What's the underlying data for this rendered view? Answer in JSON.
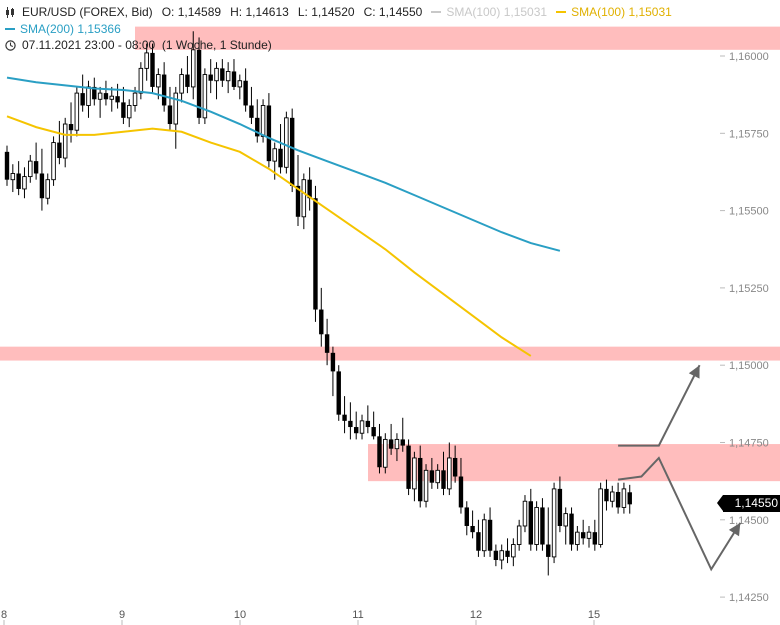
{
  "legend": {
    "symbol": "EUR/USD (FOREX, Bid)",
    "open_label": "O:",
    "open": "1,14589",
    "high_label": "H:",
    "high": "1,14613",
    "low_label": "L:",
    "low": "1,14520",
    "close_label": "C:",
    "close": "1,14550",
    "sma100_gray_label": "SMA(100)",
    "sma100_gray_value": "1,15031",
    "sma100_label": "SMA(100)",
    "sma100_value": "1,15031",
    "sma200_label": "SMA(200)",
    "sma200_value": "1,15366",
    "timestamp": "07.11.2021 23:00 - 08:00",
    "timeframe": "(1 Woche, 1 Stunde)"
  },
  "colors": {
    "sma100": "#f5c400",
    "sma100_gray": "#c8c8c8",
    "sma200": "#2a9fc4",
    "zone": "#ffbdbd",
    "candle": "#000000",
    "arrow": "#666666",
    "axis_text": "#888888"
  },
  "current_price_label": "1,14550",
  "chart_data": {
    "type": "candlestick",
    "title": "",
    "y_ticks": [
      1.16,
      1.1575,
      1.155,
      1.1525,
      1.15,
      1.1475,
      1.145,
      1.1425
    ],
    "y_tick_labels": [
      "1,16000",
      "1,15750",
      "1,15500",
      "1,15250",
      "1,15000",
      "1,14750",
      "1,14500",
      "1,14250"
    ],
    "ylim": [
      1.1422,
      1.1616
    ],
    "x_tick_labels": [
      "8",
      "9",
      "10",
      "11",
      "12",
      "15"
    ],
    "current_price": 1.1455,
    "resistance_zones": [
      {
        "low": 1.1602,
        "high": 1.16095
      },
      {
        "low": 1.15015,
        "high": 1.1506
      },
      {
        "low": 1.14625,
        "high": 1.14745
      }
    ],
    "sma200_points": [
      [
        0,
        1.1593
      ],
      [
        5,
        1.15915
      ],
      [
        10,
        1.15905
      ],
      [
        15,
        1.15895
      ],
      [
        20,
        1.1589
      ],
      [
        25,
        1.1588
      ],
      [
        30,
        1.15855
      ],
      [
        35,
        1.1582
      ],
      [
        40,
        1.1578
      ],
      [
        45,
        1.15735
      ],
      [
        50,
        1.15695
      ],
      [
        55,
        1.1566
      ],
      [
        60,
        1.15625
      ],
      [
        65,
        1.1559
      ],
      [
        70,
        1.1555
      ],
      [
        75,
        1.1551
      ],
      [
        80,
        1.1547
      ],
      [
        85,
        1.1543
      ],
      [
        90,
        1.15395
      ],
      [
        95,
        1.1537
      ]
    ],
    "sma100_points": [
      [
        0,
        1.15805
      ],
      [
        5,
        1.1577
      ],
      [
        10,
        1.15745
      ],
      [
        15,
        1.15745
      ],
      [
        20,
        1.15755
      ],
      [
        25,
        1.15765
      ],
      [
        30,
        1.15755
      ],
      [
        35,
        1.1572
      ],
      [
        40,
        1.1569
      ],
      [
        45,
        1.15635
      ],
      [
        50,
        1.1557
      ],
      [
        55,
        1.15505
      ],
      [
        60,
        1.1544
      ],
      [
        65,
        1.15375
      ],
      [
        70,
        1.153
      ],
      [
        75,
        1.1523
      ],
      [
        80,
        1.1516
      ],
      [
        85,
        1.1509
      ],
      [
        90,
        1.1503
      ]
    ],
    "candles": [
      [
        1.1569,
        1.1571,
        1.1558,
        1.156
      ],
      [
        1.156,
        1.1565,
        1.1556,
        1.1562
      ],
      [
        1.1562,
        1.1566,
        1.1555,
        1.1557
      ],
      [
        1.1557,
        1.1564,
        1.1554,
        1.1561
      ],
      [
        1.1561,
        1.1568,
        1.1559,
        1.1566
      ],
      [
        1.1566,
        1.1572,
        1.156,
        1.1562
      ],
      [
        1.1562,
        1.157,
        1.155,
        1.1554
      ],
      [
        1.1554,
        1.1562,
        1.1552,
        1.156
      ],
      [
        1.156,
        1.1574,
        1.1558,
        1.1572
      ],
      [
        1.1572,
        1.1579,
        1.1565,
        1.1567
      ],
      [
        1.1567,
        1.158,
        1.1564,
        1.1578
      ],
      [
        1.1578,
        1.1585,
        1.1572,
        1.1576
      ],
      [
        1.1576,
        1.159,
        1.1574,
        1.1588
      ],
      [
        1.1588,
        1.1594,
        1.1582,
        1.1584
      ],
      [
        1.1584,
        1.1592,
        1.158,
        1.159
      ],
      [
        1.159,
        1.1593,
        1.1584,
        1.1586
      ],
      [
        1.1586,
        1.159,
        1.158,
        1.1588
      ],
      [
        1.1588,
        1.1592,
        1.1584,
        1.1586
      ],
      [
        1.1586,
        1.159,
        1.1582,
        1.1587
      ],
      [
        1.1587,
        1.1591,
        1.1583,
        1.1585
      ],
      [
        1.1585,
        1.159,
        1.1578,
        1.158
      ],
      [
        1.158,
        1.1586,
        1.1577,
        1.1584
      ],
      [
        1.1584,
        1.159,
        1.1582,
        1.1588
      ],
      [
        1.1588,
        1.1598,
        1.1586,
        1.1596
      ],
      [
        1.1596,
        1.1604,
        1.1592,
        1.1601
      ],
      [
        1.1601,
        1.1604,
        1.1588,
        1.159
      ],
      [
        1.159,
        1.1596,
        1.1586,
        1.1594
      ],
      [
        1.1594,
        1.1598,
        1.1582,
        1.1584
      ],
      [
        1.1584,
        1.159,
        1.1576,
        1.1578
      ],
      [
        1.1578,
        1.159,
        1.157,
        1.1588
      ],
      [
        1.1588,
        1.1596,
        1.1585,
        1.1594
      ],
      [
        1.1594,
        1.16,
        1.1588,
        1.159
      ],
      [
        1.159,
        1.1608,
        1.1586,
        1.1602
      ],
      [
        1.1602,
        1.1606,
        1.1578,
        1.158
      ],
      [
        1.158,
        1.1596,
        1.1578,
        1.1594
      ],
      [
        1.1594,
        1.1599,
        1.1588,
        1.1592
      ],
      [
        1.1592,
        1.1598,
        1.1586,
        1.1596
      ],
      [
        1.1596,
        1.1599,
        1.159,
        1.1592
      ],
      [
        1.1592,
        1.1598,
        1.1588,
        1.1595
      ],
      [
        1.1595,
        1.1599,
        1.1589,
        1.159
      ],
      [
        1.159,
        1.1594,
        1.1586,
        1.1592
      ],
      [
        1.1592,
        1.1596,
        1.1582,
        1.1584
      ],
      [
        1.1584,
        1.159,
        1.1578,
        1.158
      ],
      [
        1.158,
        1.1586,
        1.1572,
        1.1574
      ],
      [
        1.1574,
        1.1586,
        1.1572,
        1.1584
      ],
      [
        1.1584,
        1.1588,
        1.1564,
        1.1566
      ],
      [
        1.1566,
        1.1572,
        1.156,
        1.157
      ],
      [
        1.157,
        1.1578,
        1.1562,
        1.1564
      ],
      [
        1.1564,
        1.1582,
        1.1562,
        1.158
      ],
      [
        1.158,
        1.1583,
        1.1556,
        1.1558
      ],
      [
        1.1558,
        1.1568,
        1.1545,
        1.1548
      ],
      [
        1.1548,
        1.1562,
        1.1544,
        1.156
      ],
      [
        1.156,
        1.1564,
        1.155,
        1.1554
      ],
      [
        1.1554,
        1.1558,
        1.1514,
        1.1518
      ],
      [
        1.1518,
        1.1525,
        1.1506,
        1.151
      ],
      [
        1.151,
        1.1515,
        1.15,
        1.1504
      ],
      [
        1.1504,
        1.1506,
        1.149,
        1.1498
      ],
      [
        1.1498,
        1.15,
        1.1482,
        1.1484
      ],
      [
        1.1484,
        1.149,
        1.1478,
        1.1482
      ],
      [
        1.1482,
        1.1488,
        1.1476,
        1.148
      ],
      [
        1.148,
        1.1485,
        1.1476,
        1.1478
      ],
      [
        1.1478,
        1.1484,
        1.1476,
        1.1482
      ],
      [
        1.1482,
        1.1487,
        1.1478,
        1.148
      ],
      [
        1.148,
        1.1485,
        1.1476,
        1.1477
      ],
      [
        1.1477,
        1.1481,
        1.1465,
        1.1467
      ],
      [
        1.1467,
        1.1478,
        1.1465,
        1.1476
      ],
      [
        1.1476,
        1.1481,
        1.1471,
        1.1473
      ],
      [
        1.1473,
        1.1478,
        1.1469,
        1.1476
      ],
      [
        1.1476,
        1.1483,
        1.1472,
        1.1474
      ],
      [
        1.1474,
        1.1476,
        1.1458,
        1.146
      ],
      [
        1.146,
        1.1472,
        1.1456,
        1.147
      ],
      [
        1.147,
        1.1474,
        1.1454,
        1.1456
      ],
      [
        1.1456,
        1.1468,
        1.1454,
        1.1466
      ],
      [
        1.1466,
        1.147,
        1.146,
        1.1462
      ],
      [
        1.1462,
        1.1468,
        1.146,
        1.1466
      ],
      [
        1.1466,
        1.1472,
        1.1458,
        1.146
      ],
      [
        1.146,
        1.1475,
        1.1458,
        1.147
      ],
      [
        1.147,
        1.1474,
        1.1462,
        1.1464
      ],
      [
        1.1464,
        1.147,
        1.1452,
        1.1454
      ],
      [
        1.1454,
        1.1456,
        1.1445,
        1.1448
      ],
      [
        1.1448,
        1.1453,
        1.1444,
        1.1446
      ],
      [
        1.1446,
        1.145,
        1.1438,
        1.144
      ],
      [
        1.144,
        1.1452,
        1.1438,
        1.145
      ],
      [
        1.145,
        1.1454,
        1.1438,
        1.144
      ],
      [
        1.144,
        1.1442,
        1.1435,
        1.1437
      ],
      [
        1.1437,
        1.1442,
        1.1434,
        1.144
      ],
      [
        1.144,
        1.1444,
        1.1436,
        1.1438
      ],
      [
        1.1438,
        1.1444,
        1.1435,
        1.1442
      ],
      [
        1.1442,
        1.145,
        1.144,
        1.1448
      ],
      [
        1.1448,
        1.1458,
        1.1446,
        1.1456
      ],
      [
        1.1456,
        1.146,
        1.144,
        1.1442
      ],
      [
        1.1442,
        1.1456,
        1.144,
        1.1454
      ],
      [
        1.1454,
        1.1457,
        1.144,
        1.1442
      ],
      [
        1.1442,
        1.1454,
        1.1432,
        1.1438
      ],
      [
        1.1438,
        1.1462,
        1.1436,
        1.146
      ],
      [
        1.146,
        1.1464,
        1.1446,
        1.1448
      ],
      [
        1.1448,
        1.1454,
        1.1442,
        1.1452
      ],
      [
        1.1452,
        1.1454,
        1.144,
        1.1442
      ],
      [
        1.1442,
        1.1448,
        1.144,
        1.1446
      ],
      [
        1.1446,
        1.145,
        1.1442,
        1.1444
      ],
      [
        1.1444,
        1.1448,
        1.1441,
        1.1446
      ],
      [
        1.1446,
        1.145,
        1.144,
        1.1442
      ],
      [
        1.1442,
        1.1462,
        1.1441,
        1.146
      ],
      [
        1.146,
        1.1463,
        1.1453,
        1.1456
      ],
      [
        1.1456,
        1.1461,
        1.1454,
        1.1459
      ],
      [
        1.1459,
        1.1462,
        1.1452,
        1.1454
      ],
      [
        1.1454,
        1.1462,
        1.1452,
        1.146
      ],
      [
        1.14589,
        1.14613,
        1.1452,
        1.1455
      ]
    ],
    "projection_paths": [
      [
        [
          105,
          1.1474
        ],
        [
          112,
          1.1474
        ],
        [
          119,
          1.15
        ]
      ],
      [
        [
          105,
          1.1463
        ],
        [
          109,
          1.1464
        ],
        [
          112,
          1.147
        ],
        [
          121,
          1.1434
        ],
        [
          126,
          1.1449
        ]
      ]
    ]
  }
}
